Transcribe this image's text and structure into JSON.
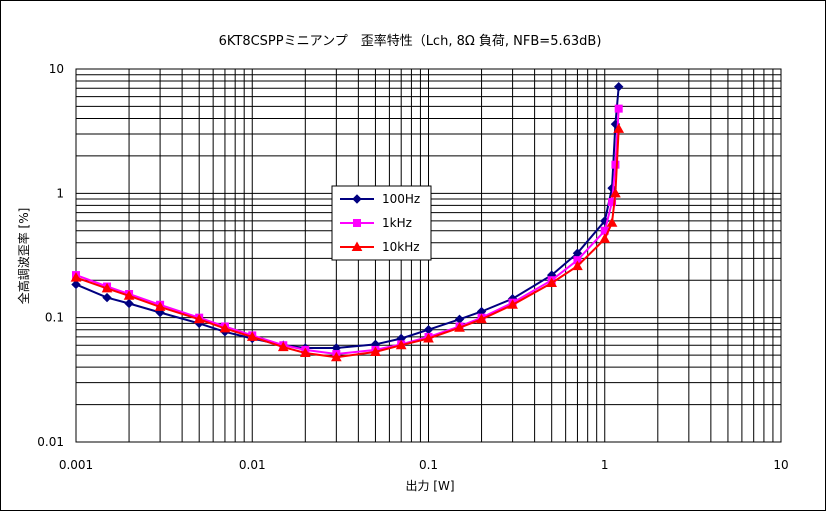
{
  "chart_data": {
    "type": "line",
    "title": "6KT8CSPPミニアンプ　歪率特性（Lch, 8Ω 負荷, NFB=5.63dB)",
    "xlabel": "出力 [W]",
    "ylabel": "全高調波歪率 [%]",
    "xscale": "log",
    "yscale": "log",
    "xlim": [
      0.001,
      10
    ],
    "ylim": [
      0.01,
      10
    ],
    "grid": true,
    "legend_position": "center",
    "x_tick_labels": [
      "0.001",
      "0.01",
      "0.1",
      "1",
      "10"
    ],
    "y_tick_labels": [
      "0.01",
      "0.1",
      "1",
      "10"
    ],
    "series": [
      {
        "name": "100Hz",
        "color": "#000080",
        "marker": "diamond",
        "x": [
          0.001,
          0.0015,
          0.002,
          0.003,
          0.005,
          0.007,
          0.01,
          0.015,
          0.02,
          0.03,
          0.05,
          0.07,
          0.1,
          0.15,
          0.2,
          0.3,
          0.5,
          0.7,
          1.0,
          1.1,
          1.15,
          1.2
        ],
        "y": [
          0.185,
          0.145,
          0.13,
          0.11,
          0.09,
          0.077,
          0.068,
          0.06,
          0.057,
          0.057,
          0.061,
          0.068,
          0.08,
          0.097,
          0.112,
          0.142,
          0.22,
          0.33,
          0.6,
          1.1,
          3.6,
          7.2
        ]
      },
      {
        "name": "1kHz",
        "color": "#ff00ff",
        "marker": "square",
        "x": [
          0.001,
          0.0015,
          0.002,
          0.003,
          0.005,
          0.007,
          0.01,
          0.015,
          0.02,
          0.03,
          0.05,
          0.07,
          0.1,
          0.15,
          0.2,
          0.3,
          0.5,
          0.7,
          1.0,
          1.1,
          1.15,
          1.2
        ],
        "y": [
          0.22,
          0.178,
          0.155,
          0.127,
          0.1,
          0.085,
          0.072,
          0.06,
          0.055,
          0.051,
          0.055,
          0.061,
          0.07,
          0.085,
          0.1,
          0.132,
          0.2,
          0.29,
          0.5,
          0.85,
          1.7,
          4.8
        ]
      },
      {
        "name": "10kHz",
        "color": "#ff0000",
        "marker": "triangle",
        "x": [
          0.001,
          0.0015,
          0.002,
          0.003,
          0.005,
          0.007,
          0.01,
          0.015,
          0.02,
          0.03,
          0.05,
          0.07,
          0.1,
          0.15,
          0.2,
          0.3,
          0.5,
          0.7,
          1.0,
          1.1,
          1.15,
          1.2
        ],
        "y": [
          0.21,
          0.172,
          0.15,
          0.122,
          0.097,
          0.082,
          0.07,
          0.058,
          0.052,
          0.048,
          0.053,
          0.06,
          0.068,
          0.083,
          0.097,
          0.127,
          0.19,
          0.26,
          0.43,
          0.58,
          1.0,
          3.3
        ]
      }
    ]
  }
}
